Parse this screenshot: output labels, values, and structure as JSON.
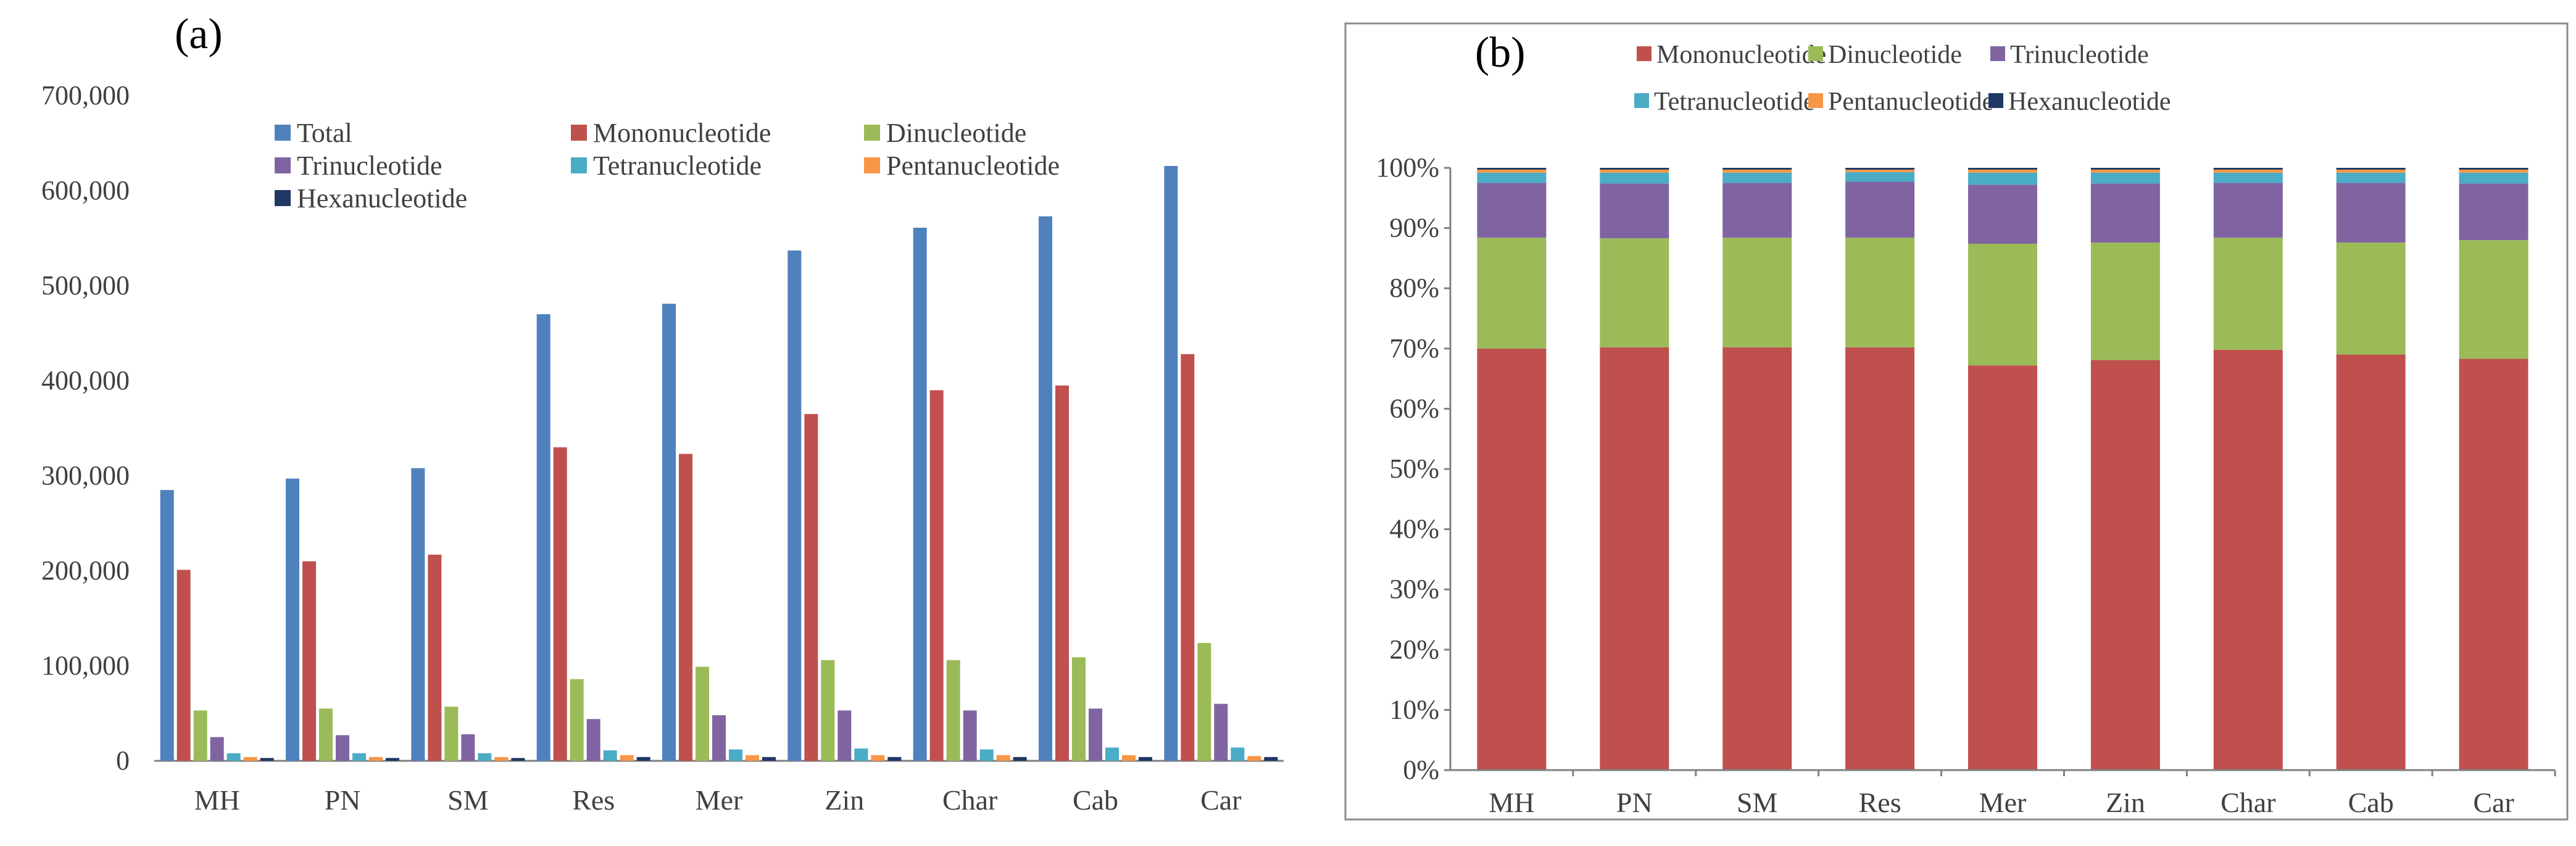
{
  "panel_a_label": "(a)",
  "panel_b_label": "(b)",
  "colors": {
    "Total": "#4f81bd",
    "Mononucleotide": "#c0504d",
    "Dinucleotide": "#9bbb59",
    "Trinucleotide": "#8064a2",
    "Tetranucleotide": "#4bacc6",
    "Pentanucleotide": "#f79646",
    "Hexanucleotide": "#1f3864"
  },
  "chart_data": [
    {
      "type": "bar",
      "title": "(a)",
      "categories": [
        "MH",
        "PN",
        "SM",
        "Res",
        "Mer",
        "Zin",
        "Char",
        "Cab",
        "Car"
      ],
      "ylim": [
        0,
        700000
      ],
      "yticks": [
        0,
        100000,
        200000,
        300000,
        400000,
        500000,
        600000,
        700000
      ],
      "ytick_labels": [
        "0",
        "100,000",
        "200,000",
        "300,000",
        "400,000",
        "500,000",
        "600,000",
        "700,000"
      ],
      "legend": [
        "Total",
        "Mononucleotide",
        "Dinucleotide",
        "Trinucleotide",
        "Tetranucleotide",
        "Pentanucleotide",
        "Hexanucleotide"
      ],
      "series": [
        {
          "name": "Total",
          "values": [
            285000,
            297000,
            308000,
            470000,
            481000,
            537000,
            561000,
            573000,
            626000
          ]
        },
        {
          "name": "Mononucleotide",
          "values": [
            201000,
            210000,
            217000,
            330000,
            323000,
            365000,
            390000,
            395000,
            428000
          ]
        },
        {
          "name": "Dinucleotide",
          "values": [
            53000,
            55000,
            57000,
            86000,
            99000,
            106000,
            106000,
            109000,
            124000
          ]
        },
        {
          "name": "Trinucleotide",
          "values": [
            25000,
            27000,
            28000,
            44000,
            48000,
            53000,
            53000,
            55000,
            60000
          ]
        },
        {
          "name": "Tetranucleotide",
          "values": [
            8000,
            8000,
            8000,
            11000,
            12000,
            13000,
            12000,
            14000,
            14000
          ]
        },
        {
          "name": "Pentanucleotide",
          "values": [
            4000,
            4000,
            4000,
            6000,
            6000,
            6000,
            6000,
            6000,
            5000
          ]
        },
        {
          "name": "Hexanucleotide",
          "values": [
            3000,
            3000,
            3000,
            4000,
            4000,
            4000,
            4000,
            4000,
            4000
          ]
        }
      ]
    },
    {
      "type": "bar",
      "stacked": true,
      "title": "(b)",
      "categories": [
        "MH",
        "PN",
        "SM",
        "Res",
        "Mer",
        "Zin",
        "Char",
        "Cab",
        "Car"
      ],
      "ylim": [
        0,
        100
      ],
      "yticks": [
        0,
        10,
        20,
        30,
        40,
        50,
        60,
        70,
        80,
        90,
        100
      ],
      "ytick_labels": [
        "0%",
        "10%",
        "20%",
        "30%",
        "40%",
        "50%",
        "60%",
        "70%",
        "80%",
        "90%",
        "100%"
      ],
      "legend": [
        "Mononucleotide",
        "Dinucleotide",
        "Trinucleotide",
        "Tetranucleotide",
        "Pentanucleotide",
        "Hexanucleotide"
      ],
      "series": [
        {
          "name": "Mononucleotide",
          "values": [
            70.0,
            70.2,
            70.2,
            70.2,
            67.2,
            68.1,
            69.8,
            69.0,
            68.3
          ]
        },
        {
          "name": "Dinucleotide",
          "values": [
            18.4,
            18.1,
            18.2,
            18.2,
            20.2,
            19.5,
            18.6,
            18.6,
            19.7
          ]
        },
        {
          "name": "Trinucleotide",
          "values": [
            9.1,
            9.1,
            9.1,
            9.3,
            9.8,
            9.8,
            9.1,
            9.9,
            9.4
          ]
        },
        {
          "name": "Tetranucleotide",
          "values": [
            1.7,
            1.8,
            1.7,
            1.6,
            2.0,
            1.8,
            1.7,
            1.7,
            1.8
          ]
        },
        {
          "name": "Pentanucleotide",
          "values": [
            0.5,
            0.5,
            0.5,
            0.4,
            0.5,
            0.5,
            0.5,
            0.5,
            0.5
          ]
        },
        {
          "name": "Hexanucleotide",
          "values": [
            0.3,
            0.3,
            0.3,
            0.3,
            0.3,
            0.3,
            0.3,
            0.3,
            0.3
          ]
        }
      ]
    }
  ]
}
